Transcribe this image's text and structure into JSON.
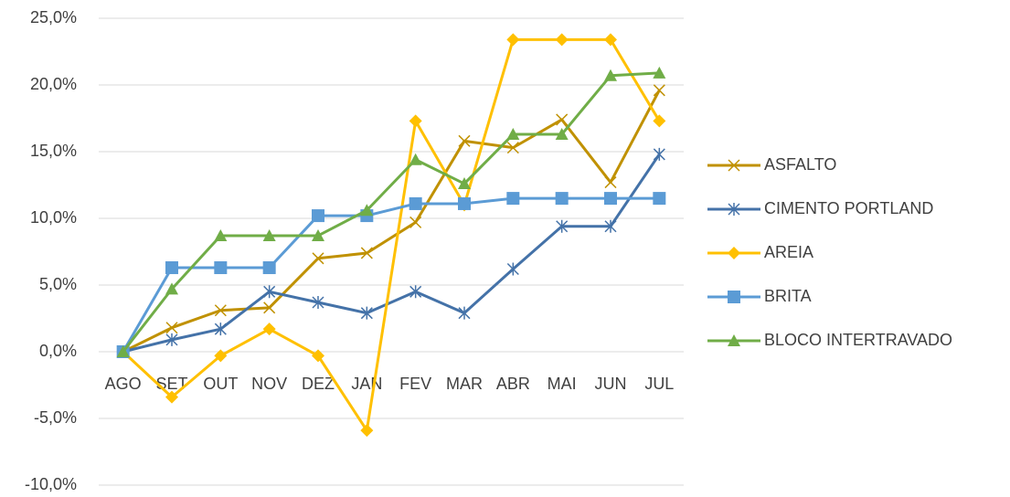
{
  "chart_data": {
    "type": "line",
    "categories": [
      "AGO",
      "SET",
      "OUT",
      "NOV",
      "DEZ",
      "JAN",
      "FEV",
      "MAR",
      "ABR",
      "MAI",
      "JUN",
      "JUL"
    ],
    "series": [
      {
        "name": "ASFALTO",
        "color": "#c09100",
        "marker": "x",
        "values": [
          0,
          1.8,
          3.1,
          3.3,
          7.0,
          7.4,
          9.7,
          15.8,
          15.3,
          17.4,
          12.7,
          19.6
        ]
      },
      {
        "name": "CIMENTO PORTLAND",
        "color": "#4472a8",
        "marker": "asterisk",
        "values": [
          0,
          0.9,
          1.7,
          4.5,
          3.7,
          2.9,
          4.5,
          2.9,
          6.2,
          9.4,
          9.4,
          14.8
        ]
      },
      {
        "name": "AREIA",
        "color": "#ffc000",
        "marker": "diamond",
        "values": [
          0,
          -3.4,
          -0.3,
          1.7,
          -0.3,
          -5.9,
          17.3,
          11.0,
          23.4,
          23.4,
          23.4,
          17.3
        ]
      },
      {
        "name": "BRITA",
        "color": "#5b9bd5",
        "marker": "square",
        "values": [
          0,
          6.3,
          6.3,
          6.3,
          10.2,
          10.2,
          11.1,
          11.1,
          11.5,
          11.5,
          11.5,
          11.5
        ]
      },
      {
        "name": "BLOCO INTERTRAVADO",
        "color": "#70ad47",
        "marker": "triangle",
        "values": [
          0,
          4.7,
          8.7,
          8.7,
          8.7,
          10.6,
          14.4,
          12.6,
          16.3,
          16.3,
          20.7,
          20.9
        ]
      }
    ],
    "ylim": [
      -10,
      25
    ],
    "yticks": [
      {
        "value": -10,
        "label": "-10,0%"
      },
      {
        "value": -5,
        "label": "-5,0%"
      },
      {
        "value": 0,
        "label": "0,0%"
      },
      {
        "value": 5,
        "label": "5,0%"
      },
      {
        "value": 10,
        "label": "10,0%"
      },
      {
        "value": 15,
        "label": "15,0%"
      },
      {
        "value": 20,
        "label": "20,0%"
      },
      {
        "value": 25,
        "label": "25,0%"
      }
    ],
    "grid": true,
    "legend": "right"
  }
}
